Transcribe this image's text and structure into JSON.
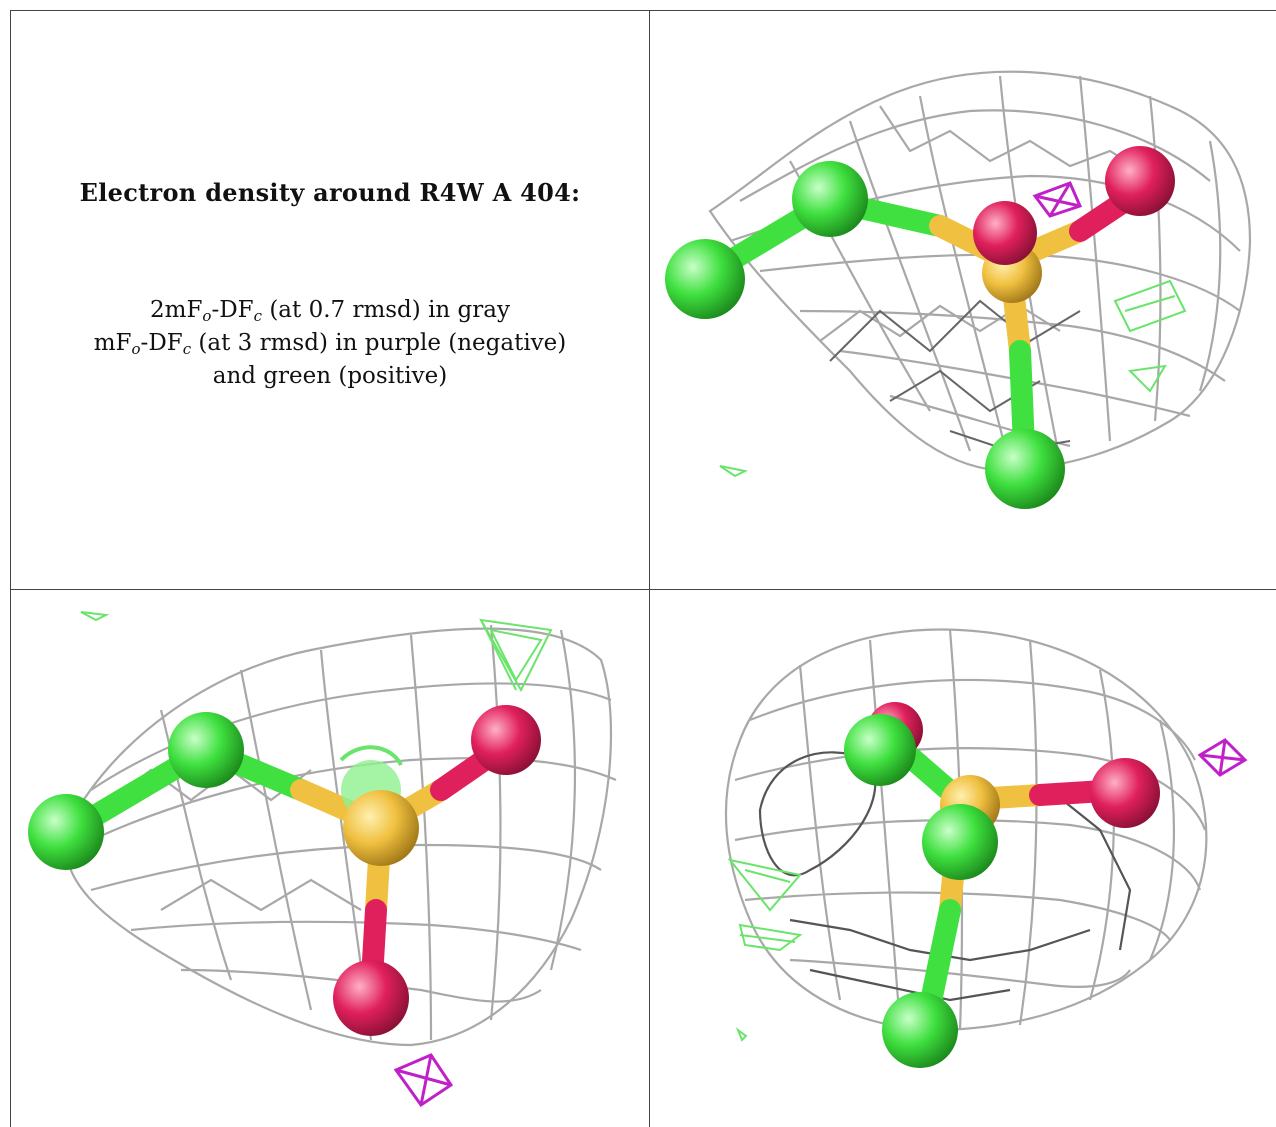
{
  "title": "Electron density around R4W A 404:",
  "legend": {
    "line1": {
      "a": "2mF",
      "a_sub": "o",
      "b": "-DF",
      "b_sub": "c",
      "c": " (at 0.7 rmsd) in gray"
    },
    "line2": {
      "a": "mF",
      "a_sub": "o",
      "b": "-DF",
      "b_sub": "c",
      "c": " (at 3 rmsd) in purple (negative)"
    },
    "line3": "and green (positive)"
  },
  "colors": {
    "mesh_gray": "#a8a8a8",
    "negative_purple": "#c020c8",
    "positive_green": "#60e060",
    "atom_green": "#3fe03f",
    "atom_pink": "#e0205c",
    "atom_yellow": "#f0c040"
  },
  "panels": [
    "view-1",
    "view-2",
    "view-3"
  ]
}
